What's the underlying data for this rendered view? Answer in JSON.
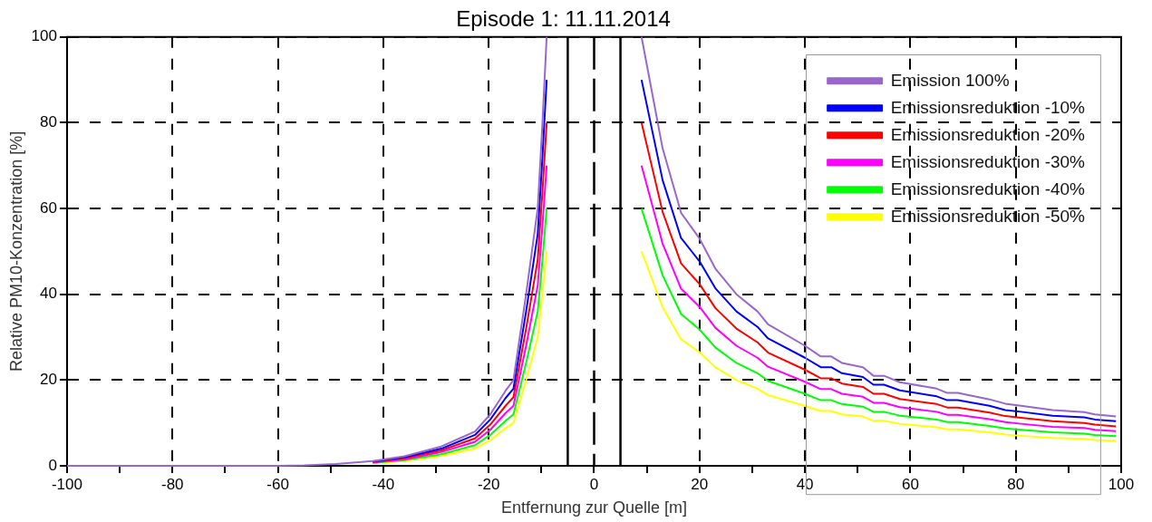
{
  "chart_data": {
    "type": "line",
    "title": "Episode 1: 11.11.2014",
    "xlabel": "Entfernung zur Quelle [m]",
    "ylabel": "Relative PM10-Konzentration [%]",
    "x": [
      -100,
      -80,
      -60,
      -55,
      -49,
      -42,
      -36,
      -29,
      -22.6,
      -19.7,
      -16.8,
      -15.3,
      -12.9,
      -10.7,
      -9.8,
      -9,
      0,
      9,
      13,
      16.5,
      20,
      23,
      27,
      31,
      33,
      40,
      43,
      45,
      47,
      51,
      53,
      55,
      58,
      65,
      67,
      69,
      75,
      78,
      81,
      87,
      93,
      95,
      99
    ],
    "series": [
      {
        "name": "Emission 100%",
        "color": "#9966cc",
        "values": [
          0,
          0,
          0,
          0.1,
          0.4,
          1.1,
          2.2,
          4.5,
          8,
          12,
          17.5,
          20,
          40,
          60,
          80,
          100,
          null,
          100,
          74,
          59,
          53,
          46,
          40,
          36,
          33,
          28,
          25.5,
          25.5,
          24,
          23,
          21,
          21,
          19.5,
          18,
          17,
          17,
          15.5,
          14.5,
          14,
          13,
          12.5,
          12,
          11.5
        ]
      },
      {
        "name": "Emissionsreduktion -10%",
        "color": "#0000ff",
        "values": [
          null,
          null,
          null,
          null,
          null,
          1,
          2,
          4,
          7.2,
          10.8,
          15.8,
          18,
          36,
          54,
          72,
          90,
          null,
          90,
          66.6,
          53.1,
          47.7,
          41.4,
          36,
          32.4,
          29.7,
          25.2,
          23,
          23,
          21.6,
          20.7,
          18.9,
          18.9,
          17.6,
          16.2,
          15.3,
          15.3,
          14,
          13,
          12.6,
          11.7,
          11.3,
          10.8,
          10.4
        ]
      },
      {
        "name": "Emissionsreduktion -20%",
        "color": "#ff0000",
        "values": [
          null,
          null,
          null,
          null,
          null,
          0.9,
          1.8,
          3.6,
          6.4,
          9.6,
          14,
          16,
          32,
          48,
          64,
          80,
          null,
          80,
          59.2,
          47.2,
          42.4,
          36.8,
          32,
          28.8,
          26.4,
          22.4,
          20.4,
          20.4,
          19.2,
          18.4,
          16.8,
          16.8,
          15.6,
          14.4,
          13.6,
          13.6,
          12.4,
          11.6,
          11.2,
          10.4,
          10,
          9.6,
          9.2
        ]
      },
      {
        "name": "Emissionsreduktion -30%",
        "color": "#ff00ff",
        "values": [
          null,
          null,
          null,
          null,
          null,
          0.8,
          1.5,
          3.2,
          5.6,
          8.4,
          12.3,
          14,
          28,
          42,
          56,
          70,
          null,
          70,
          51.8,
          41.3,
          37.1,
          32.2,
          28,
          25.2,
          23.1,
          19.6,
          17.9,
          17.9,
          16.8,
          16.1,
          14.7,
          14.7,
          13.7,
          12.6,
          11.9,
          11.9,
          10.9,
          10.2,
          9.8,
          9.1,
          8.8,
          8.4,
          8.1
        ]
      },
      {
        "name": "Emissionsreduktion -40%",
        "color": "#00ff00",
        "values": [
          null,
          null,
          null,
          null,
          null,
          0.7,
          1.3,
          2.7,
          4.8,
          7.2,
          10.5,
          12,
          24,
          36,
          48,
          60,
          null,
          60,
          44.4,
          35.4,
          31.8,
          27.6,
          24,
          21.6,
          19.8,
          16.8,
          15.3,
          15.3,
          14.4,
          13.8,
          12.6,
          12.6,
          11.7,
          10.8,
          10.2,
          10.2,
          9.3,
          8.7,
          8.4,
          7.8,
          7.5,
          7.2,
          6.9
        ]
      },
      {
        "name": "Emissionsreduktion -50%",
        "color": "#ffff00",
        "values": [
          null,
          null,
          null,
          null,
          null,
          0.6,
          1.1,
          2.3,
          4,
          6,
          8.8,
          10,
          20,
          30,
          40,
          50,
          null,
          50,
          37,
          29.5,
          26.5,
          23,
          20,
          18,
          16.5,
          14,
          12.8,
          12.8,
          12,
          11.5,
          10.5,
          10.5,
          9.8,
          9,
          8.5,
          8.5,
          7.8,
          7.3,
          7,
          6.5,
          6.3,
          6,
          5.8
        ]
      }
    ],
    "xlim": [
      -100,
      100
    ],
    "xticks": [
      -100,
      {
        "value": -90,
        "label": null
      },
      -80,
      {
        "value": -70,
        "label": null
      },
      -60,
      {
        "value": -50,
        "label": null
      },
      -40,
      {
        "value": -30,
        "label": null
      },
      -20,
      {
        "value": -10,
        "label": null
      },
      0,
      {
        "value": 10,
        "label": null
      },
      20,
      {
        "value": 30,
        "label": null
      },
      40,
      {
        "value": 50,
        "label": null
      },
      60,
      {
        "value": 70,
        "label": null
      },
      80,
      {
        "value": 90,
        "label": null
      },
      100
    ],
    "ylim": [
      0,
      100
    ],
    "yticks": [
      0,
      20,
      40,
      60,
      80,
      100
    ],
    "ref_lines": [
      {
        "axis": "x",
        "value": -5,
        "color": "#000000",
        "line_style": "solid"
      },
      {
        "axis": "x",
        "value": 0,
        "color": "#000000",
        "line_style": "dashed"
      },
      {
        "axis": "x",
        "value": 5,
        "color": "#000000",
        "line_style": "solid"
      }
    ],
    "grid": true,
    "legend": "top right",
    "marker": "none",
    "line_style": "solid"
  }
}
